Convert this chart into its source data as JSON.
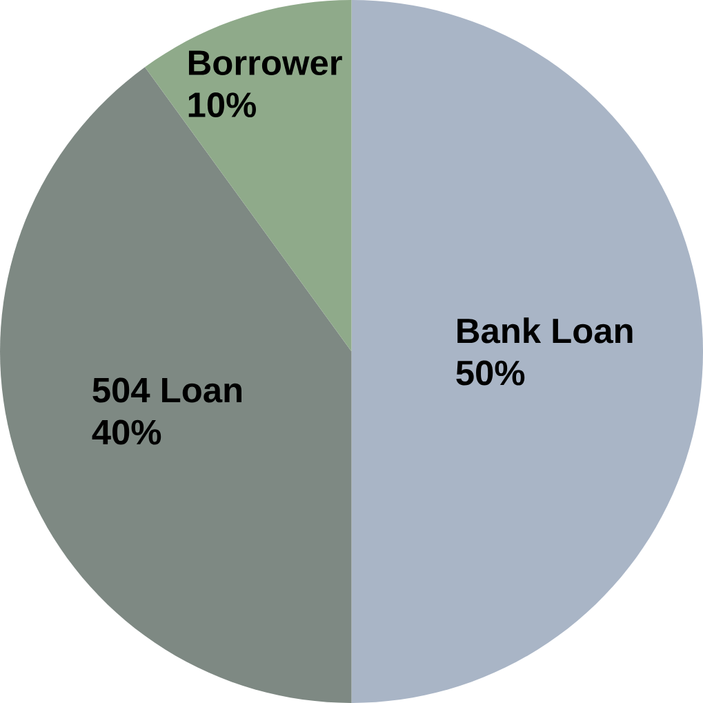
{
  "chart_data": {
    "type": "pie",
    "categories": [
      "Bank Loan",
      "504 Loan",
      "Borrower"
    ],
    "values": [
      50,
      40,
      10
    ],
    "colors": [
      "#a9b5c6",
      "#7e8983",
      "#8faa8a"
    ],
    "value_labels": [
      "50%",
      "40%",
      "10%"
    ]
  }
}
